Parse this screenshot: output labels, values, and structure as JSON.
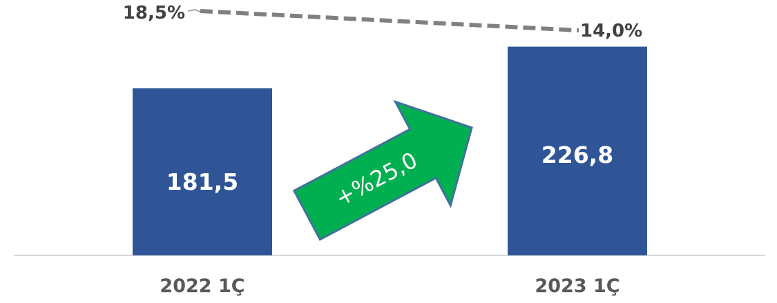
{
  "chart_data": {
    "type": "bar",
    "categories": [
      "2022 1Ç",
      "2023 1Ç"
    ],
    "values": [
      181.5,
      226.8
    ],
    "value_labels": [
      "181,5",
      "226,8"
    ],
    "ylim": [
      0,
      255
    ],
    "bar_color": "#2F5597",
    "line_series": {
      "values": [
        18.5,
        14.0
      ],
      "value_labels": [
        "18,5%",
        "14,0%"
      ],
      "style": "dashed",
      "color": "#808080"
    },
    "annotation": {
      "text": "+%25,0",
      "shape": "arrow",
      "color": "#00B050"
    },
    "title": "",
    "xlabel": "",
    "ylabel": "",
    "grid": false
  }
}
